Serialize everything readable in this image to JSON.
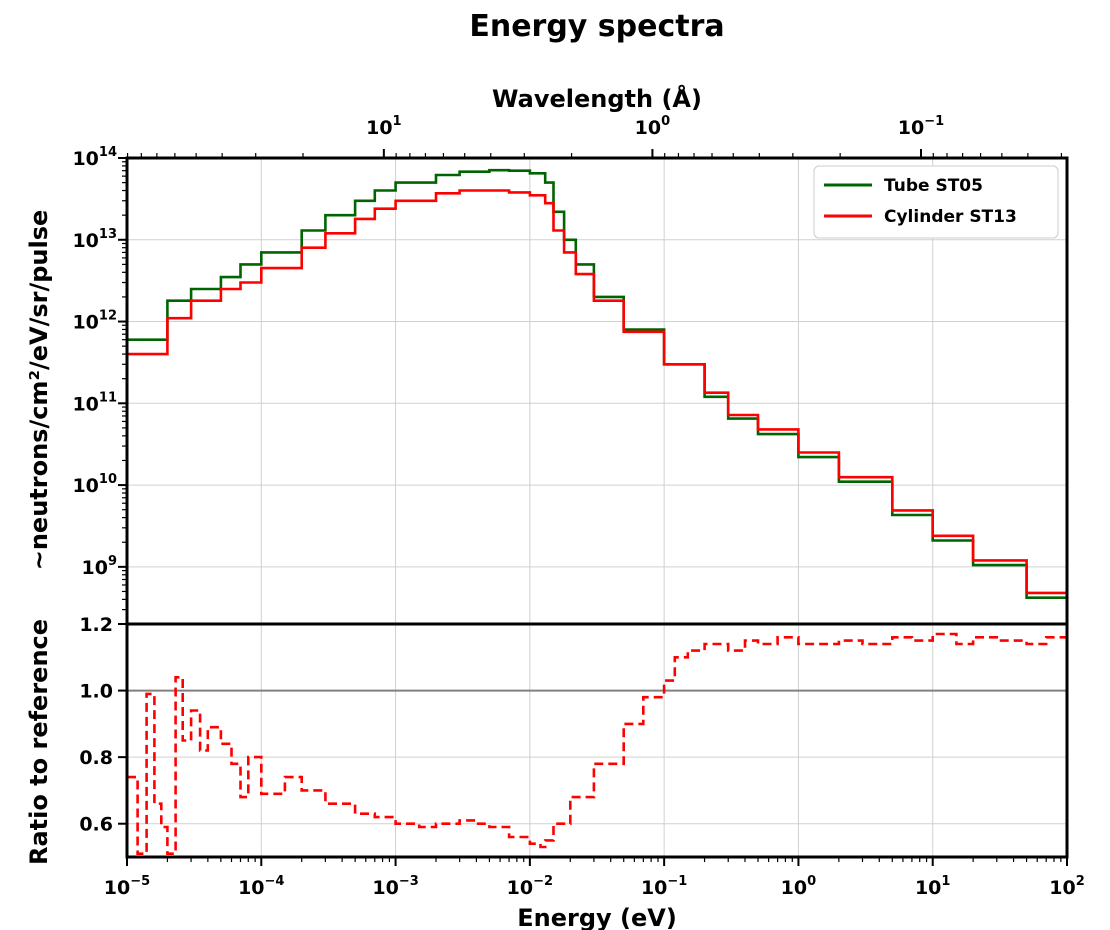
{
  "chart_data": {
    "title": "Energy spectra",
    "panels": [
      {
        "type": "line",
        "step": true,
        "yscale": "log",
        "xscale": "log",
        "xlim": [
          1e-05,
          100
        ],
        "ylim": [
          200000000.0,
          100000000000000.0
        ],
        "ylabel": "~neutrons/cm²/eV/sr/pulse",
        "secondary_xlabel": "Wavelength (Å)",
        "secondary_x_ticks": [
          {
            "mantissa": "10",
            "exp": "1"
          },
          {
            "mantissa": "10",
            "exp": "0"
          },
          {
            "mantissa": "10",
            "exp": "−1"
          }
        ],
        "y_ticks": [
          {
            "value": 1000000000.0,
            "mantissa": "10",
            "exp": "9"
          },
          {
            "value": 10000000000.0,
            "mantissa": "10",
            "exp": "10"
          },
          {
            "value": 100000000000.0,
            "mantissa": "10",
            "exp": "11"
          },
          {
            "value": 1000000000000.0,
            "mantissa": "10",
            "exp": "12"
          },
          {
            "value": 10000000000000.0,
            "mantissa": "10",
            "exp": "13"
          },
          {
            "value": 100000000000000.0,
            "mantissa": "10",
            "exp": "14"
          }
        ],
        "legend_position": "top-right",
        "series": [
          {
            "name": "Tube ST05",
            "color": "#006400",
            "x": [
              1e-05,
              2e-05,
              3e-05,
              5e-05,
              7e-05,
              0.0001,
              0.0002,
              0.0003,
              0.0005,
              0.0007,
              0.001,
              0.002,
              0.003,
              0.005,
              0.007,
              0.01,
              0.013,
              0.015,
              0.018,
              0.022,
              0.03,
              0.05,
              0.1,
              0.2,
              0.3,
              0.5,
              1,
              2,
              5,
              10,
              20,
              50,
              100
            ],
            "y": [
              600000000000.0,
              1800000000000.0,
              2500000000000.0,
              3500000000000.0,
              5000000000000.0,
              7000000000000.0,
              13000000000000.0,
              20000000000000.0,
              30000000000000.0,
              40000000000000.0,
              50000000000000.0,
              62000000000000.0,
              68000000000000.0,
              71000000000000.0,
              70000000000000.0,
              65000000000000.0,
              50000000000000.0,
              22000000000000.0,
              10000000000000.0,
              5000000000000.0,
              2000000000000.0,
              800000000000.0,
              300000000000.0,
              120000000000.0,
              65000000000.0,
              42000000000.0,
              22000000000.0,
              11000000000.0,
              4300000000.0,
              2100000000.0,
              1050000000.0,
              420000000.0,
              220000000.0
            ]
          },
          {
            "name": "Cylinder ST13",
            "color": "#ff0000",
            "x": [
              1e-05,
              2e-05,
              3e-05,
              5e-05,
              7e-05,
              0.0001,
              0.0002,
              0.0003,
              0.0005,
              0.0007,
              0.001,
              0.002,
              0.003,
              0.005,
              0.007,
              0.01,
              0.013,
              0.015,
              0.018,
              0.022,
              0.03,
              0.05,
              0.1,
              0.2,
              0.3,
              0.5,
              1,
              2,
              5,
              10,
              20,
              50,
              100
            ],
            "y": [
              400000000000.0,
              1100000000000.0,
              1800000000000.0,
              2500000000000.0,
              3000000000000.0,
              4500000000000.0,
              8000000000000.0,
              12000000000000.0,
              18000000000000.0,
              24000000000000.0,
              30000000000000.0,
              37000000000000.0,
              40000000000000.0,
              40000000000000.0,
              38000000000000.0,
              35000000000000.0,
              28000000000000.0,
              13000000000000.0,
              7000000000000.0,
              3800000000000.0,
              1800000000000.0,
              750000000000.0,
              300000000000.0,
              135000000000.0,
              72000000000.0,
              48000000000.0,
              25000000000.0,
              12500000000.0,
              4900000000.0,
              2400000000.0,
              1200000000.0,
              480000000.0,
              250000000.0
            ]
          }
        ]
      },
      {
        "type": "line",
        "step": true,
        "xscale": "log",
        "xlim": [
          1e-05,
          100
        ],
        "ylim": [
          0.5,
          1.2
        ],
        "xlabel": "Energy (eV)",
        "ylabel": "Ratio to reference",
        "reference_line": {
          "y": 1.0,
          "color": "#808080"
        },
        "y_ticks": [
          "0.6",
          "0.8",
          "1.0",
          "1.2"
        ],
        "x_ticks": [
          {
            "value": 1e-05,
            "mantissa": "10",
            "exp": "−5"
          },
          {
            "value": 0.0001,
            "mantissa": "10",
            "exp": "−4"
          },
          {
            "value": 0.001,
            "mantissa": "10",
            "exp": "−3"
          },
          {
            "value": 0.01,
            "mantissa": "10",
            "exp": "−2"
          },
          {
            "value": 0.1,
            "mantissa": "10",
            "exp": "−1"
          },
          {
            "value": 1,
            "mantissa": "10",
            "exp": "0"
          },
          {
            "value": 10,
            "mantissa": "10",
            "exp": "1"
          },
          {
            "value": 100,
            "mantissa": "10",
            "exp": "2"
          }
        ],
        "series": [
          {
            "name": "Cylinder ST13 / Tube ST05",
            "color": "#ff0000",
            "dashed": true,
            "x": [
              1e-05,
              1.2e-05,
              1.4e-05,
              1.6e-05,
              1.8e-05,
              2e-05,
              2.3e-05,
              2.6e-05,
              3e-05,
              3.5e-05,
              4e-05,
              5e-05,
              6e-05,
              7e-05,
              8e-05,
              0.0001,
              0.00015,
              0.0002,
              0.0003,
              0.0005,
              0.0007,
              0.001,
              0.0015,
              0.002,
              0.003,
              0.004,
              0.005,
              0.007,
              0.01,
              0.012,
              0.013,
              0.015,
              0.02,
              0.03,
              0.05,
              0.07,
              0.1,
              0.12,
              0.15,
              0.2,
              0.3,
              0.4,
              0.5,
              0.7,
              1,
              2,
              3,
              5,
              7,
              10,
              15,
              20,
              30,
              50,
              70,
              100
            ],
            "y": [
              0.74,
              0.51,
              0.99,
              0.66,
              0.59,
              0.51,
              1.04,
              0.85,
              0.94,
              0.82,
              0.89,
              0.84,
              0.78,
              0.68,
              0.8,
              0.69,
              0.74,
              0.7,
              0.66,
              0.63,
              0.62,
              0.6,
              0.59,
              0.6,
              0.61,
              0.6,
              0.59,
              0.56,
              0.54,
              0.53,
              0.55,
              0.6,
              0.68,
              0.78,
              0.9,
              0.98,
              1.03,
              1.1,
              1.12,
              1.14,
              1.12,
              1.15,
              1.14,
              1.16,
              1.14,
              1.15,
              1.14,
              1.16,
              1.15,
              1.17,
              1.14,
              1.16,
              1.15,
              1.14,
              1.16,
              1.15
            ]
          }
        ]
      }
    ]
  }
}
